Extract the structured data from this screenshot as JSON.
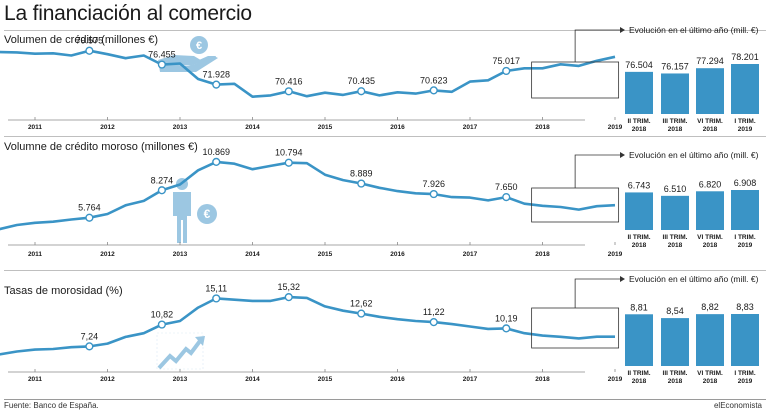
{
  "header": {
    "title": "La financiación al comercio"
  },
  "footer": {
    "source": "Fuente: Banco de España.",
    "brand": "elEconomista"
  },
  "colors": {
    "line": "#3a94c6",
    "bar": "#3a94c6",
    "axis": "#8a8a8a",
    "icon": "#9cc7e2"
  },
  "icons": [
    "hand-coin-icon",
    "person-euro-icon",
    "rising-arrow-icon"
  ],
  "chart_data": [
    {
      "type": "line",
      "title": "Volumen de crédito (millones €)",
      "x_ticks": [
        "2011",
        "2012",
        "2013",
        "2014",
        "2015",
        "2016",
        "2017",
        "2018",
        "2019"
      ],
      "labelled_points": [
        {
          "date": "2011-10",
          "value": 79575,
          "label": "79.575"
        },
        {
          "date": "2012-10",
          "value": 76455,
          "label": "76.455"
        },
        {
          "date": "2013-07",
          "value": 71928,
          "label": "71.928"
        },
        {
          "date": "2014-07",
          "value": 70416,
          "label": "70.416"
        },
        {
          "date": "2015-07",
          "value": 70435,
          "label": "70.435"
        },
        {
          "date": "2016-07",
          "value": 70623,
          "label": "70.623"
        },
        {
          "date": "2017-07",
          "value": 75017,
          "label": "75.017"
        }
      ],
      "series": [
        {
          "date": "2010-04",
          "value": 78600
        },
        {
          "date": "2010-07",
          "value": 79300
        },
        {
          "date": "2010-10",
          "value": 79200
        },
        {
          "date": "2011-01",
          "value": 78900
        },
        {
          "date": "2011-04",
          "value": 79000
        },
        {
          "date": "2011-07",
          "value": 78500
        },
        {
          "date": "2011-10",
          "value": 79575
        },
        {
          "date": "2012-01",
          "value": 78800
        },
        {
          "date": "2012-04",
          "value": 77900
        },
        {
          "date": "2012-07",
          "value": 78500
        },
        {
          "date": "2012-10",
          "value": 76455
        },
        {
          "date": "2013-01",
          "value": 76700
        },
        {
          "date": "2013-04",
          "value": 73200
        },
        {
          "date": "2013-07",
          "value": 71928
        },
        {
          "date": "2013-10",
          "value": 72100
        },
        {
          "date": "2014-01",
          "value": 69200
        },
        {
          "date": "2014-04",
          "value": 69500
        },
        {
          "date": "2014-07",
          "value": 70416
        },
        {
          "date": "2014-10",
          "value": 69300
        },
        {
          "date": "2015-01",
          "value": 70100
        },
        {
          "date": "2015-04",
          "value": 69600
        },
        {
          "date": "2015-07",
          "value": 70435
        },
        {
          "date": "2015-10",
          "value": 69500
        },
        {
          "date": "2016-01",
          "value": 70200
        },
        {
          "date": "2016-04",
          "value": 69900
        },
        {
          "date": "2016-07",
          "value": 70623
        },
        {
          "date": "2016-10",
          "value": 70300
        },
        {
          "date": "2017-01",
          "value": 72600
        },
        {
          "date": "2017-04",
          "value": 72900
        },
        {
          "date": "2017-07",
          "value": 75017
        },
        {
          "date": "2017-10",
          "value": 75600
        },
        {
          "date": "2018-01",
          "value": 75600
        },
        {
          "date": "2018-04",
          "value": 76504
        },
        {
          "date": "2018-07",
          "value": 76157
        },
        {
          "date": "2018-10",
          "value": 77294
        },
        {
          "date": "2019-01",
          "value": 78201
        }
      ],
      "inset": {
        "title": "Evolución en el último año (mill. €)",
        "type": "bar",
        "categories": [
          [
            "II TRIM.",
            "2018"
          ],
          [
            "III TRIM.",
            "2018"
          ],
          [
            "VI TRIM.",
            "2018"
          ],
          [
            "I TRIM.",
            "2019"
          ]
        ],
        "values": [
          76504,
          76157,
          77294,
          78201
        ],
        "labels": [
          "76.504",
          "76.157",
          "77.294",
          "78.201"
        ]
      }
    },
    {
      "type": "line",
      "title": "Volumne de crédito moroso (millones €)",
      "x_ticks": [
        "2011",
        "2012",
        "2013",
        "2014",
        "2015",
        "2016",
        "2017",
        "2018",
        "2019"
      ],
      "labelled_points": [
        {
          "date": "2011-10",
          "value": 5764,
          "label": "5.764"
        },
        {
          "date": "2012-10",
          "value": 8274,
          "label": "8.274"
        },
        {
          "date": "2013-07",
          "value": 10869,
          "label": "10.869"
        },
        {
          "date": "2014-07",
          "value": 10794,
          "label": "10.794"
        },
        {
          "date": "2015-07",
          "value": 8889,
          "label": "8.889"
        },
        {
          "date": "2016-07",
          "value": 7926,
          "label": "7.926"
        },
        {
          "date": "2017-07",
          "value": 7650,
          "label": "7.650"
        }
      ],
      "series": [
        {
          "date": "2010-04",
          "value": 4300
        },
        {
          "date": "2010-07",
          "value": 4700
        },
        {
          "date": "2010-10",
          "value": 5100
        },
        {
          "date": "2011-01",
          "value": 5300
        },
        {
          "date": "2011-04",
          "value": 5400
        },
        {
          "date": "2011-07",
          "value": 5600
        },
        {
          "date": "2011-10",
          "value": 5764
        },
        {
          "date": "2012-01",
          "value": 6100
        },
        {
          "date": "2012-04",
          "value": 6900
        },
        {
          "date": "2012-07",
          "value": 7300
        },
        {
          "date": "2012-10",
          "value": 8274
        },
        {
          "date": "2013-01",
          "value": 8800
        },
        {
          "date": "2013-04",
          "value": 10100
        },
        {
          "date": "2013-07",
          "value": 10869
        },
        {
          "date": "2013-10",
          "value": 10700
        },
        {
          "date": "2014-01",
          "value": 10200
        },
        {
          "date": "2014-04",
          "value": 10500
        },
        {
          "date": "2014-07",
          "value": 10794
        },
        {
          "date": "2014-10",
          "value": 10750
        },
        {
          "date": "2015-01",
          "value": 9700
        },
        {
          "date": "2015-04",
          "value": 9200
        },
        {
          "date": "2015-07",
          "value": 8889
        },
        {
          "date": "2015-10",
          "value": 8500
        },
        {
          "date": "2016-01",
          "value": 8200
        },
        {
          "date": "2016-04",
          "value": 8000
        },
        {
          "date": "2016-07",
          "value": 7926
        },
        {
          "date": "2016-10",
          "value": 7650
        },
        {
          "date": "2017-01",
          "value": 7600
        },
        {
          "date": "2017-04",
          "value": 7350
        },
        {
          "date": "2017-07",
          "value": 7650
        },
        {
          "date": "2017-10",
          "value": 7050
        },
        {
          "date": "2018-01",
          "value": 6850
        },
        {
          "date": "2018-04",
          "value": 6743
        },
        {
          "date": "2018-07",
          "value": 6510
        },
        {
          "date": "2018-10",
          "value": 6820
        },
        {
          "date": "2019-01",
          "value": 6908
        }
      ],
      "inset": {
        "title": "Evolución en el último año (mill. €)",
        "type": "bar",
        "categories": [
          [
            "II TRIM.",
            "2018"
          ],
          [
            "III TRIM.",
            "2018"
          ],
          [
            "VI TRIM.",
            "2018"
          ],
          [
            "I TRIM.",
            "2019"
          ]
        ],
        "values": [
          6743,
          6510,
          6820,
          6908
        ],
        "labels": [
          "6.743",
          "6.510",
          "6.820",
          "6.908"
        ]
      }
    },
    {
      "type": "line",
      "title": "Tasas de morosidad (%)",
      "x_ticks": [
        "2011",
        "2012",
        "2013",
        "2014",
        "2015",
        "2016",
        "2017",
        "2018",
        "2019"
      ],
      "labelled_points": [
        {
          "date": "2011-10",
          "value": 7.24,
          "label": "7,24"
        },
        {
          "date": "2012-10",
          "value": 10.82,
          "label": "10,82"
        },
        {
          "date": "2013-07",
          "value": 15.11,
          "label": "15,11"
        },
        {
          "date": "2014-07",
          "value": 15.32,
          "label": "15,32"
        },
        {
          "date": "2015-07",
          "value": 12.62,
          "label": "12,62"
        },
        {
          "date": "2016-07",
          "value": 11.22,
          "label": "11,22"
        },
        {
          "date": "2017-07",
          "value": 10.19,
          "label": "10,19"
        }
      ],
      "series": [
        {
          "date": "2010-04",
          "value": 5.6
        },
        {
          "date": "2010-07",
          "value": 5.9
        },
        {
          "date": "2010-10",
          "value": 6.4
        },
        {
          "date": "2011-01",
          "value": 6.7
        },
        {
          "date": "2011-04",
          "value": 6.8
        },
        {
          "date": "2011-07",
          "value": 7.1
        },
        {
          "date": "2011-10",
          "value": 7.24
        },
        {
          "date": "2012-01",
          "value": 7.7
        },
        {
          "date": "2012-04",
          "value": 8.8
        },
        {
          "date": "2012-07",
          "value": 9.4
        },
        {
          "date": "2012-10",
          "value": 10.82
        },
        {
          "date": "2013-01",
          "value": 11.4
        },
        {
          "date": "2013-04",
          "value": 13.6
        },
        {
          "date": "2013-07",
          "value": 15.11
        },
        {
          "date": "2013-10",
          "value": 14.9
        },
        {
          "date": "2014-01",
          "value": 14.7
        },
        {
          "date": "2014-04",
          "value": 14.7
        },
        {
          "date": "2014-07",
          "value": 15.32
        },
        {
          "date": "2014-10",
          "value": 15.2
        },
        {
          "date": "2015-01",
          "value": 13.8
        },
        {
          "date": "2015-04",
          "value": 13.1
        },
        {
          "date": "2015-07",
          "value": 12.62
        },
        {
          "date": "2015-10",
          "value": 12.1
        },
        {
          "date": "2016-01",
          "value": 11.7
        },
        {
          "date": "2016-04",
          "value": 11.4
        },
        {
          "date": "2016-07",
          "value": 11.22
        },
        {
          "date": "2016-10",
          "value": 10.9
        },
        {
          "date": "2017-01",
          "value": 10.5
        },
        {
          "date": "2017-04",
          "value": 10.1
        },
        {
          "date": "2017-07",
          "value": 10.19
        },
        {
          "date": "2017-10",
          "value": 9.4
        },
        {
          "date": "2018-01",
          "value": 9.0
        },
        {
          "date": "2018-04",
          "value": 8.81
        },
        {
          "date": "2018-07",
          "value": 8.54
        },
        {
          "date": "2018-10",
          "value": 8.82
        },
        {
          "date": "2019-01",
          "value": 8.83
        }
      ],
      "inset": {
        "title": "Evolución en el último año (mill. €)",
        "type": "bar",
        "categories": [
          [
            "II TRIM.",
            "2018"
          ],
          [
            "III TRIM.",
            "2018"
          ],
          [
            "VI TRIM.",
            "2018"
          ],
          [
            "I TRIM.",
            "2019"
          ]
        ],
        "values": [
          8.81,
          8.54,
          8.82,
          8.83
        ],
        "labels": [
          "8,81",
          "8,54",
          "8,82",
          "8,83"
        ]
      }
    }
  ]
}
